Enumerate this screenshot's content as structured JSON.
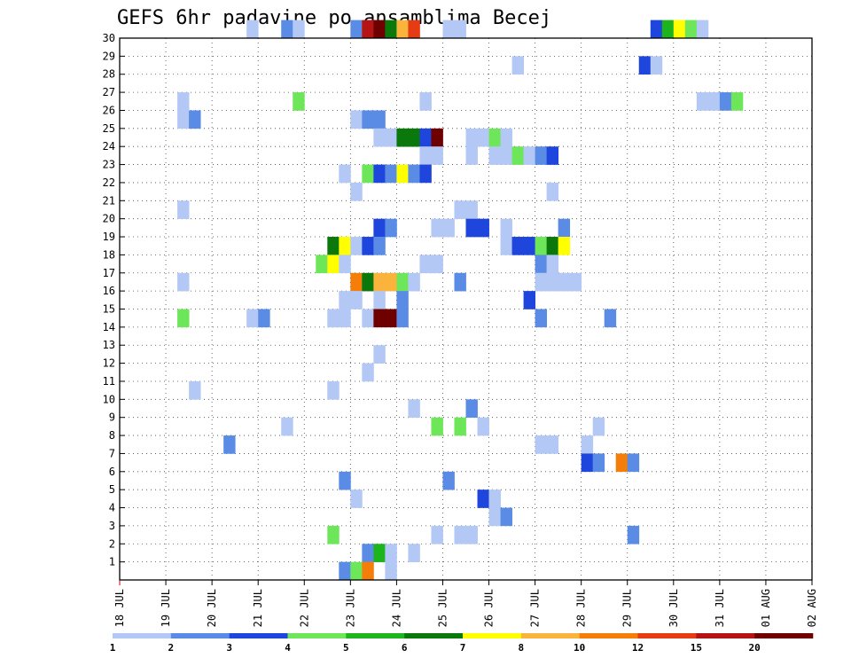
{
  "chart_data": {
    "type": "heatmap",
    "title": "GEFS 6hr padavine po ansamblima Becej",
    "x_tick_labels": [
      "18 JUL",
      "19 JUL",
      "20 JUL",
      "21 JUL",
      "22 JUL",
      "23 JUL",
      "24 JUL",
      "25 JUL",
      "26 JUL",
      "27 JUL",
      "28 JUL",
      "29 JUL",
      "30 JUL",
      "31 JUL",
      "01 AUG",
      "02 AUG"
    ],
    "y_tick_labels": [
      "1",
      "2",
      "3",
      "4",
      "5",
      "6",
      "7",
      "8",
      "9",
      "10",
      "11",
      "12",
      "13",
      "14",
      "15",
      "16",
      "17",
      "18",
      "19",
      "20",
      "21",
      "22",
      "23",
      "24",
      "25",
      "26",
      "27",
      "28",
      "29",
      "30"
    ],
    "x_range": [
      0,
      60
    ],
    "y_range": [
      0,
      30
    ],
    "grid": true,
    "colorbar_labels": [
      "1",
      "2",
      "3",
      "4",
      "5",
      "6",
      "7",
      "8",
      "10",
      "12",
      "15",
      "20"
    ],
    "colors": [
      "#b4c8f5",
      "#5a8ce6",
      "#1e46dc",
      "#6ee65a",
      "#1eb41e",
      "#0a780a",
      "#ffff00",
      "#fab43c",
      "#f57d0a",
      "#e63c14",
      "#b41414",
      "#6e0000"
    ],
    "cells": [
      [
        30,
        11,
        1
      ],
      [
        30,
        14,
        2
      ],
      [
        30,
        15,
        1
      ],
      [
        30,
        20,
        2
      ],
      [
        30,
        21,
        11
      ],
      [
        30,
        22,
        12
      ],
      [
        30,
        23,
        6
      ],
      [
        30,
        24,
        8
      ],
      [
        30,
        25,
        10
      ],
      [
        30,
        28,
        1
      ],
      [
        30,
        29,
        1
      ],
      [
        30,
        46,
        3
      ],
      [
        30,
        47,
        5
      ],
      [
        30,
        48,
        7
      ],
      [
        30,
        49,
        4
      ],
      [
        30,
        50,
        1
      ],
      [
        28,
        34,
        1
      ],
      [
        28,
        45,
        3
      ],
      [
        28,
        46,
        1
      ],
      [
        26,
        5,
        1
      ],
      [
        26,
        15,
        4
      ],
      [
        26,
        26,
        1
      ],
      [
        26,
        50,
        1
      ],
      [
        26,
        51,
        1
      ],
      [
        26,
        52,
        2
      ],
      [
        26,
        53,
        4
      ],
      [
        25,
        5,
        1
      ],
      [
        25,
        6,
        2
      ],
      [
        25,
        20,
        1
      ],
      [
        25,
        21,
        2
      ],
      [
        25,
        22,
        2
      ],
      [
        24,
        22,
        1
      ],
      [
        24,
        23,
        1
      ],
      [
        24,
        24,
        6
      ],
      [
        24,
        25,
        6
      ],
      [
        24,
        26,
        3
      ],
      [
        24,
        27,
        12
      ],
      [
        24,
        30,
        1
      ],
      [
        24,
        31,
        1
      ],
      [
        24,
        32,
        4
      ],
      [
        24,
        33,
        1
      ],
      [
        23,
        26,
        1
      ],
      [
        23,
        27,
        1
      ],
      [
        23,
        30,
        1
      ],
      [
        23,
        32,
        1
      ],
      [
        23,
        33,
        1
      ],
      [
        23,
        34,
        4
      ],
      [
        23,
        35,
        1
      ],
      [
        23,
        36,
        2
      ],
      [
        23,
        37,
        3
      ],
      [
        22,
        19,
        1
      ],
      [
        22,
        21,
        4
      ],
      [
        22,
        22,
        3
      ],
      [
        22,
        23,
        2
      ],
      [
        22,
        24,
        7
      ],
      [
        22,
        25,
        2
      ],
      [
        22,
        26,
        3
      ],
      [
        21,
        20,
        1
      ],
      [
        21,
        37,
        1
      ],
      [
        20,
        5,
        1
      ],
      [
        20,
        29,
        1
      ],
      [
        20,
        30,
        1
      ],
      [
        19,
        22,
        3
      ],
      [
        19,
        23,
        2
      ],
      [
        19,
        27,
        1
      ],
      [
        19,
        28,
        1
      ],
      [
        19,
        30,
        3
      ],
      [
        19,
        31,
        3
      ],
      [
        19,
        33,
        1
      ],
      [
        19,
        38,
        2
      ],
      [
        18,
        18,
        6
      ],
      [
        18,
        19,
        7
      ],
      [
        18,
        20,
        1
      ],
      [
        18,
        21,
        3
      ],
      [
        18,
        22,
        2
      ],
      [
        18,
        33,
        1
      ],
      [
        18,
        34,
        3
      ],
      [
        18,
        35,
        3
      ],
      [
        18,
        36,
        4
      ],
      [
        18,
        37,
        6
      ],
      [
        18,
        38,
        7
      ],
      [
        17,
        17,
        4
      ],
      [
        17,
        18,
        7
      ],
      [
        17,
        19,
        1
      ],
      [
        17,
        26,
        1
      ],
      [
        17,
        27,
        1
      ],
      [
        17,
        36,
        2
      ],
      [
        17,
        37,
        1
      ],
      [
        16,
        5,
        1
      ],
      [
        16,
        20,
        9
      ],
      [
        16,
        21,
        6
      ],
      [
        16,
        22,
        8
      ],
      [
        16,
        23,
        8
      ],
      [
        16,
        24,
        4
      ],
      [
        16,
        25,
        1
      ],
      [
        16,
        29,
        2
      ],
      [
        16,
        36,
        1
      ],
      [
        16,
        37,
        1
      ],
      [
        16,
        38,
        1
      ],
      [
        16,
        39,
        1
      ],
      [
        15,
        19,
        1
      ],
      [
        15,
        20,
        1
      ],
      [
        15,
        22,
        1
      ],
      [
        15,
        24,
        2
      ],
      [
        15,
        35,
        3
      ],
      [
        14,
        5,
        4
      ],
      [
        14,
        11,
        1
      ],
      [
        14,
        12,
        2
      ],
      [
        14,
        18,
        1
      ],
      [
        14,
        19,
        1
      ],
      [
        14,
        21,
        1
      ],
      [
        14,
        22,
        12
      ],
      [
        14,
        23,
        12
      ],
      [
        14,
        24,
        2
      ],
      [
        14,
        36,
        2
      ],
      [
        14,
        42,
        2
      ],
      [
        12,
        22,
        1
      ],
      [
        11,
        21,
        1
      ],
      [
        10,
        6,
        1
      ],
      [
        10,
        18,
        1
      ],
      [
        9,
        25,
        1
      ],
      [
        9,
        30,
        2
      ],
      [
        8,
        14,
        1
      ],
      [
        8,
        27,
        4
      ],
      [
        8,
        29,
        4
      ],
      [
        8,
        31,
        1
      ],
      [
        8,
        41,
        1
      ],
      [
        7,
        9,
        2
      ],
      [
        7,
        36,
        1
      ],
      [
        7,
        37,
        1
      ],
      [
        7,
        40,
        1
      ],
      [
        6,
        40,
        3
      ],
      [
        6,
        41,
        2
      ],
      [
        6,
        43,
        9
      ],
      [
        6,
        44,
        2
      ],
      [
        5,
        19,
        2
      ],
      [
        5,
        28,
        2
      ],
      [
        4,
        20,
        1
      ],
      [
        4,
        31,
        3
      ],
      [
        4,
        32,
        1
      ],
      [
        3,
        32,
        1
      ],
      [
        3,
        33,
        2
      ],
      [
        2,
        18,
        4
      ],
      [
        2,
        27,
        1
      ],
      [
        2,
        29,
        1
      ],
      [
        2,
        30,
        1
      ],
      [
        2,
        44,
        2
      ],
      [
        1,
        21,
        2
      ],
      [
        1,
        22,
        5
      ],
      [
        1,
        23,
        1
      ],
      [
        1,
        25,
        1
      ],
      [
        0,
        19,
        2
      ],
      [
        0,
        20,
        4
      ],
      [
        0,
        21,
        9
      ],
      [
        0,
        23,
        1
      ]
    ]
  }
}
